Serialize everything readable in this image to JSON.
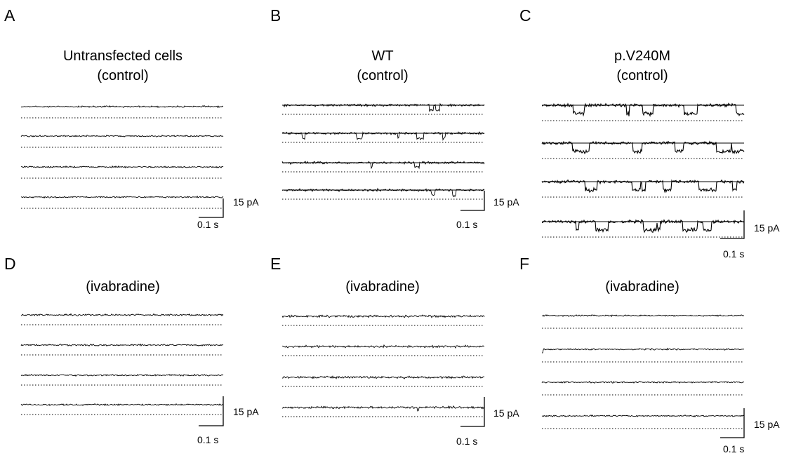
{
  "colors": {
    "trace": "#000000",
    "background": "#ffffff"
  },
  "panels": [
    {
      "letter": "A",
      "title": "Untransfected cells",
      "subtitle": "(control)",
      "activity": 0.0,
      "noise": 1.0,
      "time_scale": "0.1 s",
      "current_scale": "15 pA"
    },
    {
      "letter": "B",
      "title": "WT",
      "subtitle": "(control)",
      "activity": 0.35,
      "noise": 1.6,
      "time_scale": "0.1 s",
      "current_scale": "15 pA"
    },
    {
      "letter": "C",
      "title": "p.V240M",
      "subtitle": "(control)",
      "activity": 1.0,
      "noise": 2.0,
      "time_scale": "0.1 s",
      "current_scale": "15 pA"
    },
    {
      "letter": "D",
      "title": "",
      "subtitle": "(ivabradine)",
      "activity": 0.0,
      "noise": 1.1,
      "time_scale": "0.1 s",
      "current_scale": "15 pA"
    },
    {
      "letter": "E",
      "title": "",
      "subtitle": "(ivabradine)",
      "activity": 0.05,
      "noise": 1.5,
      "time_scale": "0.1 s",
      "current_scale": "15 pA"
    },
    {
      "letter": "F",
      "title": "",
      "subtitle": "(ivabradine)",
      "activity": 0.03,
      "noise": 1.0,
      "time_scale": "0.1 s",
      "current_scale": "15 pA"
    }
  ]
}
